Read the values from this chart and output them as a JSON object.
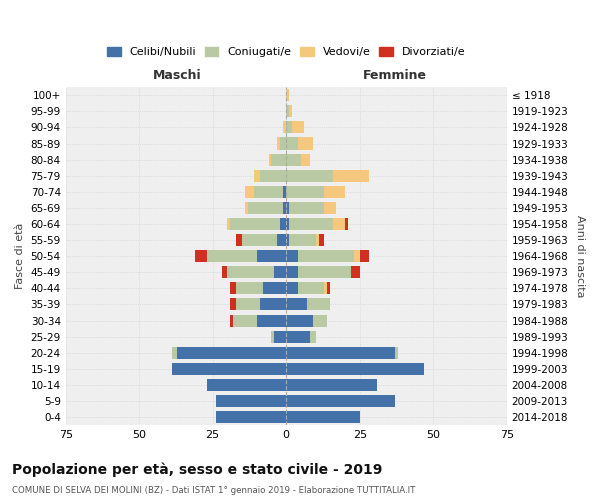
{
  "age_groups": [
    "0-4",
    "5-9",
    "10-14",
    "15-19",
    "20-24",
    "25-29",
    "30-34",
    "35-39",
    "40-44",
    "45-49",
    "50-54",
    "55-59",
    "60-64",
    "65-69",
    "70-74",
    "75-79",
    "80-84",
    "85-89",
    "90-94",
    "95-99",
    "100+"
  ],
  "birth_years": [
    "2014-2018",
    "2009-2013",
    "2004-2008",
    "1999-2003",
    "1994-1998",
    "1989-1993",
    "1984-1988",
    "1979-1983",
    "1974-1978",
    "1969-1973",
    "1964-1968",
    "1959-1963",
    "1954-1958",
    "1949-1953",
    "1944-1948",
    "1939-1943",
    "1934-1938",
    "1929-1933",
    "1924-1928",
    "1919-1923",
    "≤ 1918"
  ],
  "colors": {
    "celibi": "#4472a8",
    "coniugati": "#b8c9a3",
    "vedovi": "#f5c87e",
    "divorziati": "#d03020"
  },
  "males": {
    "celibi": [
      24,
      24,
      27,
      39,
      37,
      4,
      10,
      9,
      8,
      4,
      10,
      3,
      2,
      1,
      1,
      0,
      0,
      0,
      0,
      0,
      0
    ],
    "coniugati": [
      0,
      0,
      0,
      0,
      2,
      1,
      8,
      8,
      9,
      16,
      17,
      12,
      17,
      12,
      10,
      9,
      5,
      2,
      0,
      0,
      0
    ],
    "vedovi": [
      0,
      0,
      0,
      0,
      0,
      0,
      0,
      0,
      0,
      0,
      0,
      0,
      1,
      1,
      3,
      2,
      1,
      1,
      1,
      0,
      0
    ],
    "divorziati": [
      0,
      0,
      0,
      0,
      0,
      0,
      1,
      2,
      2,
      2,
      4,
      2,
      0,
      0,
      0,
      0,
      0,
      0,
      0,
      0,
      0
    ]
  },
  "females": {
    "celibi": [
      25,
      37,
      31,
      47,
      37,
      8,
      9,
      7,
      4,
      4,
      4,
      1,
      1,
      1,
      0,
      0,
      0,
      0,
      0,
      0,
      0
    ],
    "coniugati": [
      0,
      0,
      0,
      0,
      1,
      2,
      5,
      8,
      9,
      18,
      19,
      9,
      15,
      12,
      13,
      16,
      5,
      4,
      2,
      1,
      0
    ],
    "vedovi": [
      0,
      0,
      0,
      0,
      0,
      0,
      0,
      0,
      1,
      0,
      2,
      1,
      4,
      4,
      7,
      12,
      3,
      5,
      4,
      1,
      1
    ],
    "divorziati": [
      0,
      0,
      0,
      0,
      0,
      0,
      0,
      0,
      1,
      3,
      3,
      2,
      1,
      0,
      0,
      0,
      0,
      0,
      0,
      0,
      0
    ]
  },
  "xlim": 75,
  "title": "Popolazione per età, sesso e stato civile - 2019",
  "subtitle": "COMUNE DI SELVA DEI MOLINI (BZ) - Dati ISTAT 1° gennaio 2019 - Elaborazione TUTTITALIA.IT",
  "xlabel_left": "Maschi",
  "xlabel_right": "Femmine",
  "ylabel_left": "Fasce di età",
  "ylabel_right": "Anni di nascita",
  "legend_labels": [
    "Celibi/Nubili",
    "Coniugati/e",
    "Vedovi/e",
    "Divorziati/e"
  ],
  "bg_color": "#f0f0f0",
  "grid_color": "#cccccc"
}
